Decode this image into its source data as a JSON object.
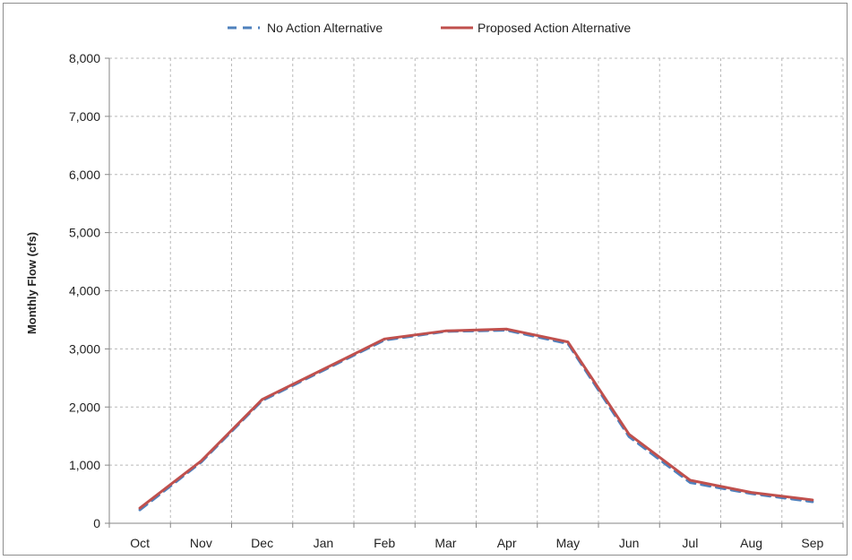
{
  "chart_data": {
    "type": "line",
    "title": "",
    "xlabel": "",
    "ylabel": "Monthly Flow (cfs)",
    "categories": [
      "Oct",
      "Nov",
      "Dec",
      "Jan",
      "Feb",
      "Mar",
      "Apr",
      "May",
      "Jun",
      "Jul",
      "Aug",
      "Sep"
    ],
    "ylim": [
      0,
      8000
    ],
    "yticks": [
      "0",
      "1,000",
      "2,000",
      "3,000",
      "4,000",
      "5,000",
      "6,000",
      "7,000",
      "8,000"
    ],
    "grid": true,
    "legend_position": "top-center",
    "series": [
      {
        "name": "No Action Alternative",
        "color": "#4f81bd",
        "style": "dashed",
        "values": [
          230,
          1050,
          2110,
          2630,
          3150,
          3300,
          3320,
          3090,
          1490,
          700,
          510,
          370
        ]
      },
      {
        "name": "Proposed Action Alternative",
        "color": "#c0504d",
        "style": "solid",
        "values": [
          260,
          1070,
          2130,
          2650,
          3170,
          3310,
          3340,
          3120,
          1530,
          740,
          530,
          400
        ]
      }
    ]
  }
}
